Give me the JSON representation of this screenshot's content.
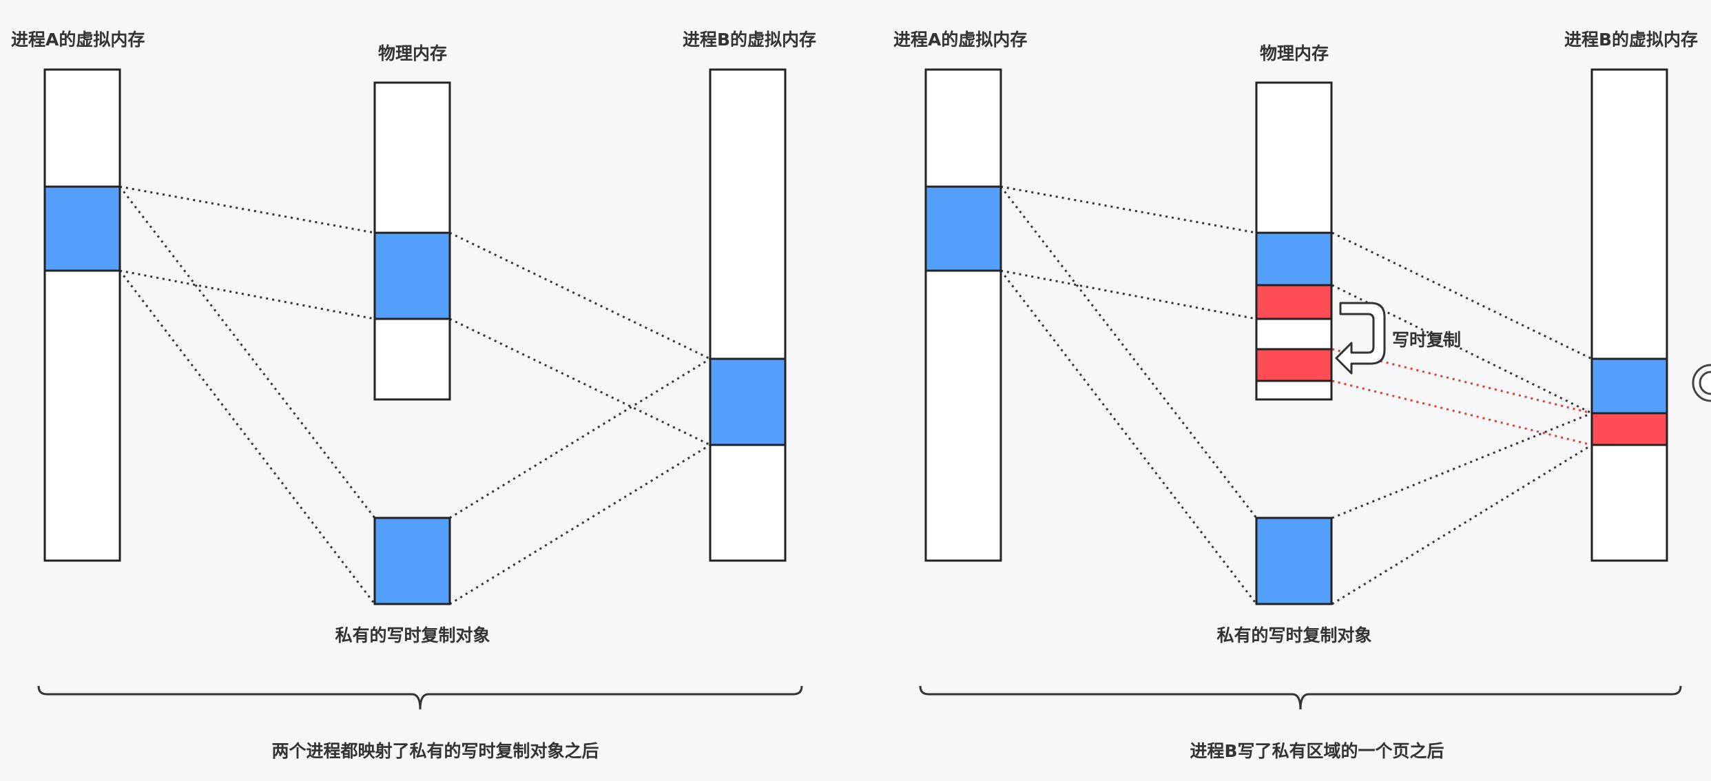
{
  "labels": {
    "proc_a_virtual": "进程A的虚拟内存",
    "physical_memory": "物理内存",
    "proc_b_virtual": "进程B的虚拟内存",
    "private_cow_object": "私有的写时复制对象",
    "copy_on_write": "写时复制"
  },
  "captions": {
    "left": "两个进程都映射了私有的写时复制对象之后",
    "right": "进程B写了私有区域的一个页之后"
  },
  "colors": {
    "shared_page": "#559ffd",
    "copied_page": "#ff4d55",
    "background": "#f7f7f7"
  }
}
